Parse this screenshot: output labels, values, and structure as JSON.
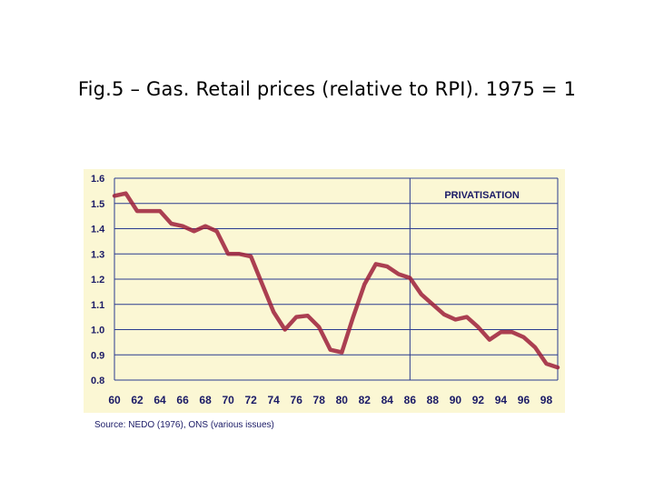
{
  "slide": {
    "title": "Fig.5 – Gas. Retail prices (relative to RPI). 1975 = 1",
    "source": "Source: NEDO (1976), ONS (various issues)"
  },
  "colors": {
    "background": "#fbf7d4",
    "grid": "#2a3b8f",
    "line": "#9c1f3a",
    "text": "#1a1a66"
  },
  "chart_data": {
    "type": "line",
    "title": "",
    "xlabel": "",
    "ylabel": "",
    "xlim": [
      1960,
      1999
    ],
    "ylim": [
      0.8,
      1.6
    ],
    "yticks": [
      1.6,
      1.5,
      1.4,
      1.3,
      1.2,
      1.1,
      1.0,
      0.9,
      0.8
    ],
    "ytick_labels": [
      "1.6",
      "1.5",
      "1.4",
      "1.3",
      "1.2",
      "1.1",
      "1.0",
      "0.9",
      "0.8"
    ],
    "xticks": [
      1960,
      1962,
      1964,
      1966,
      1968,
      1970,
      1972,
      1974,
      1976,
      1978,
      1980,
      1982,
      1984,
      1986,
      1988,
      1990,
      1992,
      1994,
      1996,
      1998
    ],
    "xtick_labels": [
      "60",
      "62",
      "64",
      "66",
      "68",
      "70",
      "72",
      "74",
      "76",
      "78",
      "80",
      "82",
      "84",
      "86",
      "88",
      "90",
      "92",
      "94",
      "96",
      "98"
    ],
    "grid": true,
    "annotation": {
      "label": "PRIVATISATION",
      "x": 1986
    },
    "series": [
      {
        "x": [
          1960,
          1961,
          1962,
          1963,
          1964,
          1965,
          1966,
          1967,
          1968,
          1969,
          1970,
          1971,
          1972,
          1973,
          1974,
          1975,
          1976,
          1977,
          1978,
          1979,
          1980,
          1981,
          1982,
          1983,
          1984,
          1985,
          1986,
          1987,
          1988,
          1989,
          1990,
          1991,
          1992,
          1993,
          1994,
          1995,
          1996,
          1997,
          1998,
          1999
        ],
        "y": [
          1.53,
          1.54,
          1.47,
          1.47,
          1.47,
          1.42,
          1.41,
          1.39,
          1.41,
          1.39,
          1.3,
          1.3,
          1.29,
          1.18,
          1.07,
          1.0,
          1.05,
          1.055,
          1.01,
          0.92,
          0.91,
          1.05,
          1.18,
          1.26,
          1.25,
          1.22,
          1.205,
          1.14,
          1.1,
          1.06,
          1.04,
          1.05,
          1.01,
          0.96,
          0.99,
          0.99,
          0.97,
          0.93,
          0.865,
          0.85
        ]
      }
    ]
  }
}
